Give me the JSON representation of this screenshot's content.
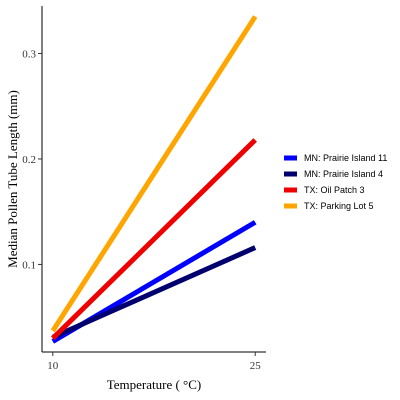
{
  "chart_data": {
    "type": "line",
    "xlabel": "Temperature ( °C)",
    "ylabel": "Median Pollen Tube Length (mm)",
    "xlim": [
      9.2,
      25.8
    ],
    "ylim": [
      0.017,
      0.345
    ],
    "x_ticks": [
      10,
      25
    ],
    "y_ticks": [
      0.1,
      0.2,
      0.3
    ],
    "grid": false,
    "legend_position": "right",
    "series": [
      {
        "name": "MN: Prairie Island 11",
        "color": "#0000ff",
        "x": [
          10,
          25
        ],
        "y": [
          0.027,
          0.14
        ]
      },
      {
        "name": "MN: Prairie Island 4",
        "color": "#00006e",
        "x": [
          10,
          25
        ],
        "y": [
          0.031,
          0.116
        ]
      },
      {
        "name": "TX: Oil Patch 3",
        "color": "#ee0000",
        "x": [
          10,
          25
        ],
        "y": [
          0.03,
          0.218
        ]
      },
      {
        "name": "TX: Parking Lot 5",
        "color": "#ffa500",
        "x": [
          10,
          25
        ],
        "y": [
          0.037,
          0.335
        ]
      }
    ]
  }
}
